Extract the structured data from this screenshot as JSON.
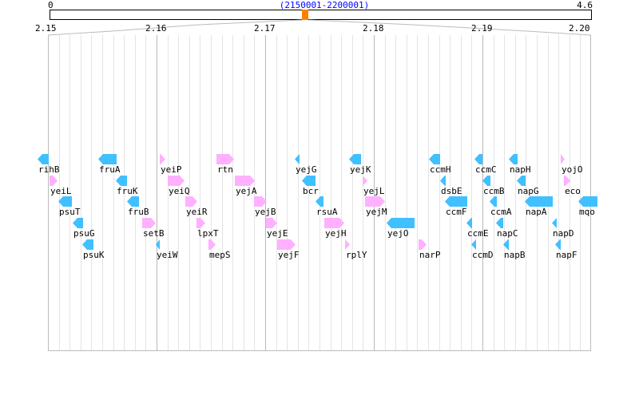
{
  "overview": {
    "start_label": "0",
    "end_label": "4.6",
    "genome_length_mb": 4.6,
    "range_label": "(2150001-2200001)",
    "range_start_mb": 2.15,
    "range_end_mb": 2.2
  },
  "scale": {
    "ticks": [
      "2.15",
      "2.16",
      "2.17",
      "2.18",
      "2.19",
      "2.20"
    ],
    "minor_grid_kb": 1,
    "major_grid_kb": 10
  },
  "colors": {
    "forward": "#ffb0ff",
    "reverse": "#40c0ff",
    "marker": "#ff8000",
    "range_label": "#0000ff"
  },
  "genes": [
    {
      "name": "rihB",
      "start_kb": 2149.04,
      "end_kb": 2150.07,
      "strand": "-"
    },
    {
      "name": "yeiL",
      "start_kb": 2150.15,
      "end_kb": 2150.88,
      "strand": "+"
    },
    {
      "name": "psuT",
      "start_kb": 2150.96,
      "end_kb": 2152.21,
      "strand": "-"
    },
    {
      "name": "psuG",
      "start_kb": 2152.28,
      "end_kb": 2153.23,
      "strand": "-"
    },
    {
      "name": "psuK",
      "start_kb": 2153.16,
      "end_kb": 2154.19,
      "strand": "-"
    },
    {
      "name": "fruA",
      "start_kb": 2154.63,
      "end_kb": 2156.32,
      "strand": "-"
    },
    {
      "name": "fruK",
      "start_kb": 2156.25,
      "end_kb": 2157.28,
      "strand": "-"
    },
    {
      "name": "fruB",
      "start_kb": 2157.28,
      "end_kb": 2158.38,
      "strand": "-"
    },
    {
      "name": "setB",
      "start_kb": 2158.67,
      "end_kb": 2159.92,
      "strand": "+"
    },
    {
      "name": "yeiW",
      "start_kb": 2159.92,
      "end_kb": 2160.29,
      "strand": "-"
    },
    {
      "name": "yeiP",
      "start_kb": 2160.29,
      "end_kb": 2160.8,
      "strand": "+"
    },
    {
      "name": "yeiQ",
      "start_kb": 2161.03,
      "end_kb": 2162.57,
      "strand": "+"
    },
    {
      "name": "yeiR",
      "start_kb": 2162.64,
      "end_kb": 2163.74,
      "strand": "+"
    },
    {
      "name": "lpxT",
      "start_kb": 2163.67,
      "end_kb": 2164.48,
      "strand": "+"
    },
    {
      "name": "mepS",
      "start_kb": 2164.77,
      "end_kb": 2165.43,
      "strand": "+"
    },
    {
      "name": "rtn",
      "start_kb": 2165.51,
      "end_kb": 2167.13,
      "strand": "+"
    },
    {
      "name": "yejA",
      "start_kb": 2167.2,
      "end_kb": 2169.04,
      "strand": "+"
    },
    {
      "name": "yejB",
      "start_kb": 2168.96,
      "end_kb": 2170.14,
      "strand": "+"
    },
    {
      "name": "yejE",
      "start_kb": 2170.07,
      "end_kb": 2171.09,
      "strand": "+"
    },
    {
      "name": "yejF",
      "start_kb": 2171.09,
      "end_kb": 2172.78,
      "strand": "+"
    },
    {
      "name": "yejG",
      "start_kb": 2172.71,
      "end_kb": 2173.15,
      "strand": "-"
    },
    {
      "name": "bcr",
      "start_kb": 2173.37,
      "end_kb": 2174.62,
      "strand": "-"
    },
    {
      "name": "rsuA",
      "start_kb": 2174.62,
      "end_kb": 2175.36,
      "strand": "-"
    },
    {
      "name": "yejH",
      "start_kb": 2175.43,
      "end_kb": 2177.27,
      "strand": "+"
    },
    {
      "name": "rplY",
      "start_kb": 2177.34,
      "end_kb": 2177.78,
      "strand": "+"
    },
    {
      "name": "yejK",
      "start_kb": 2177.71,
      "end_kb": 2178.81,
      "strand": "-"
    },
    {
      "name": "yejL",
      "start_kb": 2178.96,
      "end_kb": 2179.4,
      "strand": "+"
    },
    {
      "name": "yejM",
      "start_kb": 2179.18,
      "end_kb": 2181.02,
      "strand": "+"
    },
    {
      "name": "yejO",
      "start_kb": 2181.16,
      "end_kb": 2183.74,
      "strand": "-"
    },
    {
      "name": "narP",
      "start_kb": 2184.1,
      "end_kb": 2184.84,
      "strand": "+"
    },
    {
      "name": "ccmH",
      "start_kb": 2185.06,
      "end_kb": 2186.09,
      "strand": "-"
    },
    {
      "name": "dsbE",
      "start_kb": 2186.09,
      "end_kb": 2186.6,
      "strand": "-"
    },
    {
      "name": "ccmF",
      "start_kb": 2186.53,
      "end_kb": 2188.59,
      "strand": "-"
    },
    {
      "name": "ccmE",
      "start_kb": 2188.51,
      "end_kb": 2189.03,
      "strand": "-"
    },
    {
      "name": "ccmD",
      "start_kb": 2188.96,
      "end_kb": 2189.4,
      "strand": "-"
    },
    {
      "name": "ccmC",
      "start_kb": 2189.25,
      "end_kb": 2189.98,
      "strand": "-"
    },
    {
      "name": "ccmB",
      "start_kb": 2189.98,
      "end_kb": 2190.72,
      "strand": "-"
    },
    {
      "name": "ccmA",
      "start_kb": 2190.65,
      "end_kb": 2191.31,
      "strand": "-"
    },
    {
      "name": "napC",
      "start_kb": 2191.23,
      "end_kb": 2191.9,
      "strand": "-"
    },
    {
      "name": "napB",
      "start_kb": 2191.9,
      "end_kb": 2192.41,
      "strand": "-"
    },
    {
      "name": "napH",
      "start_kb": 2192.41,
      "end_kb": 2193.22,
      "strand": "-"
    },
    {
      "name": "napG",
      "start_kb": 2193.14,
      "end_kb": 2193.95,
      "strand": "-"
    },
    {
      "name": "napA",
      "start_kb": 2193.88,
      "end_kb": 2196.45,
      "strand": "-"
    },
    {
      "name": "napD",
      "start_kb": 2196.43,
      "end_kb": 2196.87,
      "strand": "-"
    },
    {
      "name": "napF",
      "start_kb": 2196.67,
      "end_kb": 2197.19,
      "strand": "-"
    },
    {
      "name": "yojO",
      "start_kb": 2197.19,
      "end_kb": 2197.55,
      "strand": "+"
    },
    {
      "name": "eco",
      "start_kb": 2197.48,
      "end_kb": 2198.07,
      "strand": "+"
    },
    {
      "name": "mqo",
      "start_kb": 2198.8,
      "end_kb": 2200.56,
      "strand": "-"
    }
  ]
}
